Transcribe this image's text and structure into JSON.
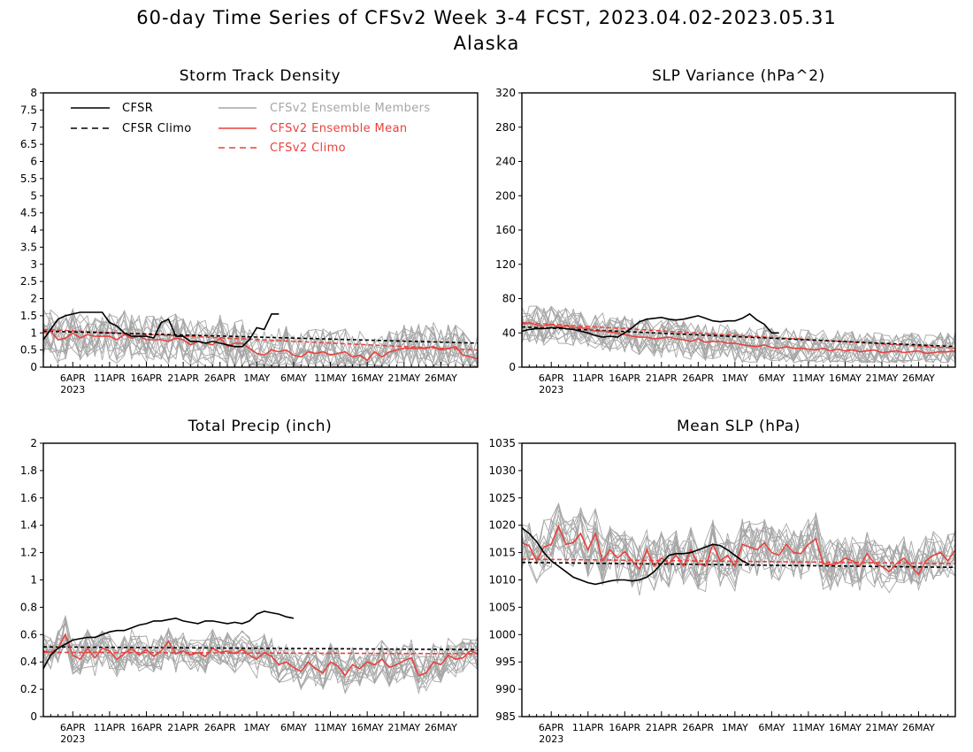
{
  "title": "60-day Time Series of CFSv2 Week 3-4 FCST, 2023.04.02-2023.05.31",
  "subtitle": "Alaska",
  "legend": {
    "cfsr": "CFSR",
    "cfsr_climo": "CFSR Climo",
    "members": "CFSv2 Ensemble Members",
    "mean": "CFSv2 Ensemble Mean",
    "cfsv2_climo": "CFSv2 Climo"
  },
  "x_tick_labels": [
    "6APR",
    "11APR",
    "16APR",
    "21APR",
    "26APR",
    "1MAY",
    "6MAY",
    "11MAY",
    "16MAY",
    "21MAY",
    "26MAY"
  ],
  "x_tick_days": [
    5,
    10,
    15,
    20,
    25,
    30,
    35,
    40,
    45,
    50,
    55
  ],
  "x_year_label": "2023",
  "colors": {
    "cfsr": "#000000",
    "members": "#a6a6a6",
    "mean": "#e8423c",
    "cfsv2_climo": "#e8423c"
  },
  "chart_data": [
    {
      "type": "line",
      "title": "Storm Track Density",
      "xlim": [
        1,
        60
      ],
      "ylim": [
        0,
        8
      ],
      "yticks": [
        "0",
        "0.5",
        "1",
        "1.5",
        "2",
        "2.5",
        "3",
        "3.5",
        "4",
        "4.5",
        "5",
        "5.5",
        "6",
        "6.5",
        "7",
        "7.5",
        "8"
      ],
      "cfsr": [
        0.8,
        1.1,
        1.4,
        1.5,
        1.55,
        1.6,
        1.6,
        1.6,
        1.6,
        1.3,
        1.2,
        1.0,
        0.9,
        0.9,
        0.9,
        0.85,
        1.3,
        1.4,
        0.9,
        0.9,
        0.75,
        0.75,
        0.7,
        0.75,
        0.7,
        0.65,
        0.6,
        0.6,
        0.8,
        1.15,
        1.1,
        1.55,
        1.55
      ],
      "cfsr_climo": [
        1.05,
        0.7
      ],
      "cfsv2_climo": [
        1.1,
        0.5
      ],
      "mean": [
        1.0,
        1.05,
        0.8,
        0.85,
        1.0,
        0.85,
        0.95,
        0.9,
        0.9,
        0.9,
        0.8,
        0.95,
        0.85,
        0.9,
        0.8,
        0.8,
        0.8,
        0.75,
        0.85,
        0.8,
        0.65,
        0.75,
        0.7,
        0.65,
        0.85,
        0.6,
        0.7,
        0.7,
        0.55,
        0.4,
        0.35,
        0.5,
        0.45,
        0.5,
        0.35,
        0.3,
        0.45,
        0.4,
        0.45,
        0.35,
        0.4,
        0.45,
        0.3,
        0.35,
        0.2,
        0.45,
        0.3,
        0.45,
        0.5,
        0.55,
        0.55,
        0.55,
        0.55,
        0.6,
        0.5,
        0.55,
        0.6,
        0.35,
        0.3,
        0.25
      ],
      "member_spread": 0.5,
      "member_count": 16,
      "member_floor": 0
    },
    {
      "type": "line",
      "title": "SLP Variance (hPa^2)",
      "xlim": [
        1,
        60
      ],
      "ylim": [
        0,
        320
      ],
      "yticks": [
        "0",
        "40",
        "80",
        "120",
        "160",
        "200",
        "240",
        "280",
        "320"
      ],
      "cfsr": [
        42,
        44,
        45,
        45,
        46,
        46,
        45,
        44,
        42,
        40,
        37,
        35,
        36,
        35,
        40,
        46,
        53,
        56,
        57,
        58,
        56,
        55,
        56,
        58,
        60,
        57,
        54,
        53,
        54,
        54,
        57,
        62,
        55,
        50,
        40,
        40
      ],
      "cfsr_climo": [
        47,
        24
      ],
      "cfsv2_climo": [
        52,
        22
      ],
      "mean": [
        50,
        52,
        49,
        48,
        50,
        47,
        48,
        46,
        46,
        45,
        42,
        42,
        41,
        40,
        38,
        36,
        35,
        35,
        33,
        34,
        35,
        33,
        32,
        30,
        33,
        29,
        30,
        30,
        28,
        28,
        26,
        25,
        24,
        26,
        23,
        22,
        24,
        22,
        22,
        21,
        20,
        22,
        19,
        21,
        19,
        20,
        18,
        19,
        20,
        17,
        18,
        19,
        17,
        18,
        19,
        16,
        17,
        18,
        18,
        19
      ],
      "member_spread": 16,
      "member_count": 16,
      "member_floor": 5
    },
    {
      "type": "line",
      "title": "Total Precip (inch)",
      "xlim": [
        1,
        60
      ],
      "ylim": [
        0,
        2
      ],
      "yticks": [
        "0",
        "0.2",
        "0.4",
        "0.6",
        "0.8",
        "1",
        "1.2",
        "1.4",
        "1.6",
        "1.8",
        "2"
      ],
      "cfsr": [
        0.35,
        0.45,
        0.5,
        0.53,
        0.56,
        0.57,
        0.58,
        0.58,
        0.6,
        0.62,
        0.63,
        0.63,
        0.65,
        0.67,
        0.68,
        0.7,
        0.7,
        0.71,
        0.72,
        0.7,
        0.69,
        0.68,
        0.7,
        0.7,
        0.69,
        0.68,
        0.69,
        0.68,
        0.7,
        0.75,
        0.77,
        0.76,
        0.75,
        0.73,
        0.72
      ],
      "cfsr_climo": [
        0.51,
        0.49
      ],
      "cfsv2_climo": [
        0.47,
        0.46
      ],
      "mean": [
        0.48,
        0.47,
        0.5,
        0.6,
        0.45,
        0.42,
        0.5,
        0.43,
        0.5,
        0.48,
        0.42,
        0.46,
        0.5,
        0.45,
        0.49,
        0.44,
        0.48,
        0.55,
        0.46,
        0.48,
        0.45,
        0.47,
        0.44,
        0.5,
        0.47,
        0.48,
        0.46,
        0.49,
        0.45,
        0.42,
        0.47,
        0.44,
        0.38,
        0.4,
        0.36,
        0.33,
        0.4,
        0.35,
        0.32,
        0.4,
        0.37,
        0.3,
        0.38,
        0.35,
        0.4,
        0.38,
        0.42,
        0.36,
        0.38,
        0.41,
        0.43,
        0.3,
        0.32,
        0.4,
        0.38,
        0.45,
        0.42,
        0.43,
        0.48,
        0.46
      ],
      "member_spread": 0.1,
      "member_count": 16,
      "member_floor": 0.1
    },
    {
      "type": "line",
      "title": "Mean SLP (hPa)",
      "xlim": [
        1,
        60
      ],
      "ylim": [
        985,
        1035
      ],
      "yticks": [
        "985",
        "990",
        "995",
        "1000",
        "1005",
        "1010",
        "1015",
        "1020",
        "1025",
        "1030",
        "1035"
      ],
      "cfsr": [
        1019.5,
        1018.5,
        1017,
        1015,
        1013.5,
        1012.5,
        1011.5,
        1010.5,
        1010,
        1009.5,
        1009.2,
        1009.5,
        1009.8,
        1010,
        1010,
        1009.8,
        1010,
        1010.5,
        1011.5,
        1013,
        1014.5,
        1014.8,
        1014.8,
        1015,
        1015.5,
        1016,
        1016.5,
        1016.3,
        1015.5,
        1014.5,
        1013.5,
        1012.8
      ],
      "cfsr_climo": [
        1013.2,
        1012.3
      ],
      "cfsv2_climo": [
        1013.8,
        1013.0
      ],
      "mean": [
        1016.8,
        1016.2,
        1013.5,
        1016,
        1016.5,
        1019.8,
        1016.5,
        1016.8,
        1018.5,
        1015.5,
        1018.5,
        1013.5,
        1015.5,
        1014,
        1015.2,
        1013.5,
        1012,
        1015.5,
        1012.5,
        1014,
        1013,
        1014.5,
        1012.5,
        1015.5,
        1013,
        1012.5,
        1016.5,
        1013.5,
        1014.5,
        1012.5,
        1016.5,
        1016,
        1015.5,
        1016.8,
        1015,
        1014.5,
        1016.5,
        1015,
        1014.8,
        1016.5,
        1017.5,
        1013,
        1012.8,
        1013,
        1014,
        1013.5,
        1012.5,
        1014.8,
        1013,
        1012.5,
        1011.5,
        1013,
        1014,
        1012.5,
        1011,
        1013.5,
        1014.5,
        1015,
        1013.5,
        1015.5
      ],
      "member_spread": 3.5,
      "member_count": 16,
      "member_floor": 985
    }
  ]
}
